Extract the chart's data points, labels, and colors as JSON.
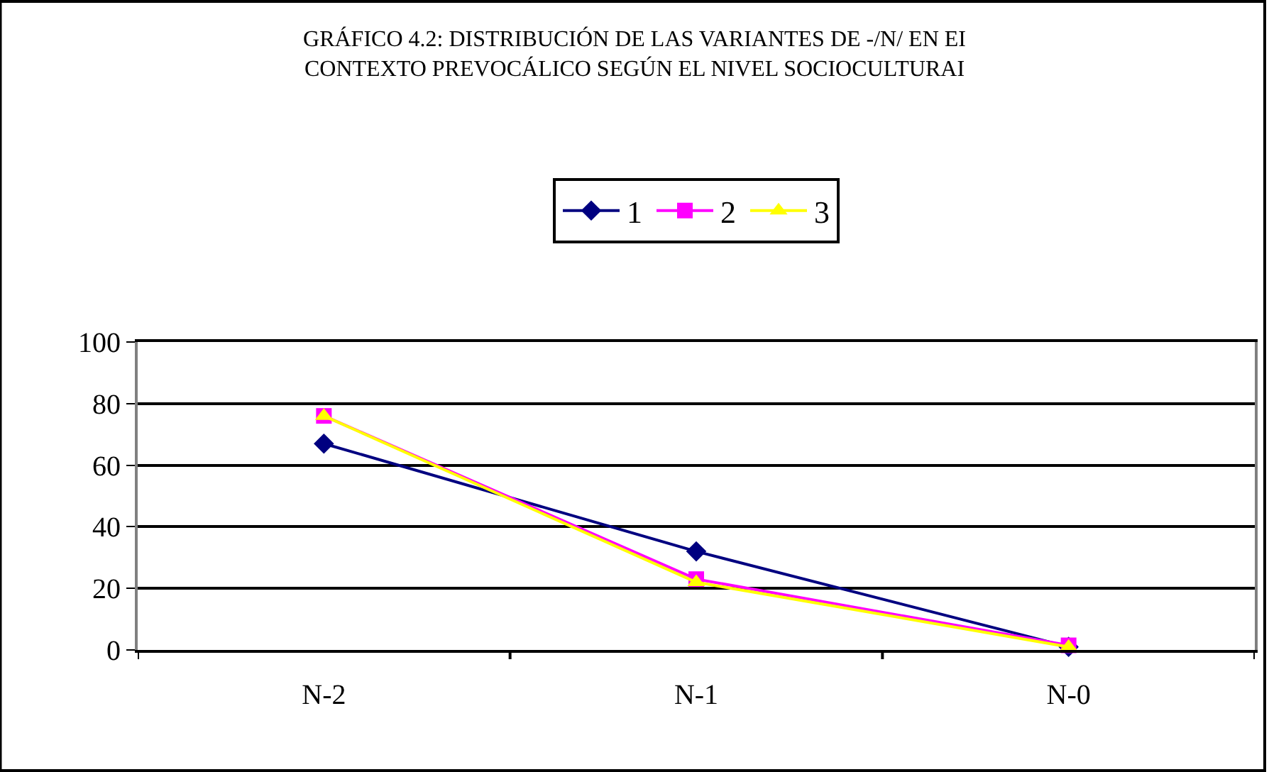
{
  "chart_data": {
    "type": "line",
    "title": "GRÁFICO 4.2: DISTRIBUCIÓN DE LAS VARIANTES DE -/N/ EN EI\nCONTEXTO PREVOCÁLICO SEGÚN EL NIVEL SOCIOCULTURAI",
    "categories": [
      "N-2",
      "N-1",
      "N-0"
    ],
    "series": [
      {
        "name": "1",
        "color": "#000080",
        "marker": "diamond",
        "values": [
          67,
          32,
          1
        ]
      },
      {
        "name": "2",
        "color": "#ff00ff",
        "marker": "square",
        "values": [
          76,
          23,
          1.5
        ]
      },
      {
        "name": "3",
        "color": "#ffff00",
        "marker": "triangle",
        "values": [
          76,
          22,
          1
        ]
      }
    ],
    "ylim": [
      0,
      100
    ],
    "yticks": [
      0,
      20,
      40,
      60,
      80,
      100
    ],
    "grid": "y",
    "legend": "top",
    "line_style": "solid"
  }
}
